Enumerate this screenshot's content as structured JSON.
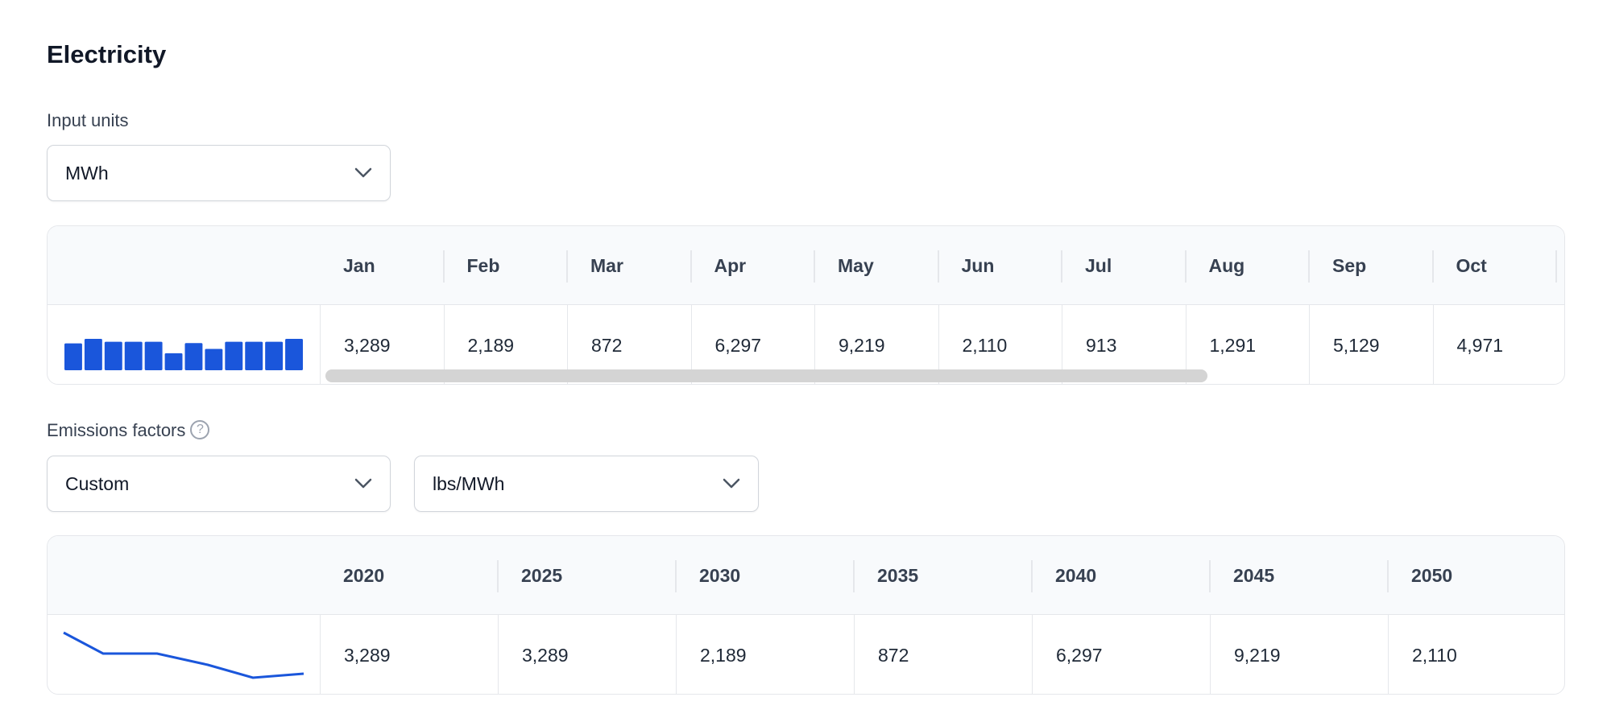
{
  "section_title": "Electricity",
  "input_units": {
    "label": "Input units",
    "selected": "MWh",
    "chevron_icon": "chevron-down-icon"
  },
  "monthly_table": {
    "headers": [
      "Jan",
      "Feb",
      "Mar",
      "Apr",
      "May",
      "Jun",
      "Jul",
      "Aug",
      "Sep",
      "Oct"
    ],
    "values": [
      "3,289",
      "2,189",
      "872",
      "6,297",
      "9,219",
      "2,110",
      "913",
      "1,291",
      "5,129",
      "4,971"
    ],
    "sparkline_type": "bar",
    "sparkline_levels": [
      101,
      118,
      107,
      107,
      107,
      64,
      102,
      80,
      107,
      107,
      107,
      118
    ],
    "sparkline_color": "#1a56db"
  },
  "emissions": {
    "label": "Emissions factors",
    "help_icon": "question-circle-icon",
    "source_selected": "Custom",
    "unit_selected": "lbs/MWh"
  },
  "yearly_table": {
    "headers": [
      "2020",
      "2025",
      "2030",
      "2035",
      "2040",
      "2045",
      "2050"
    ],
    "values": [
      "3,289",
      "3,289",
      "2,189",
      "872",
      "6,297",
      "9,219",
      "2,110"
    ],
    "sparkline_type": "line",
    "sparkline_levels": [
      56,
      30,
      30,
      16,
      0,
      5
    ],
    "sparkline_color": "#1a56db"
  }
}
